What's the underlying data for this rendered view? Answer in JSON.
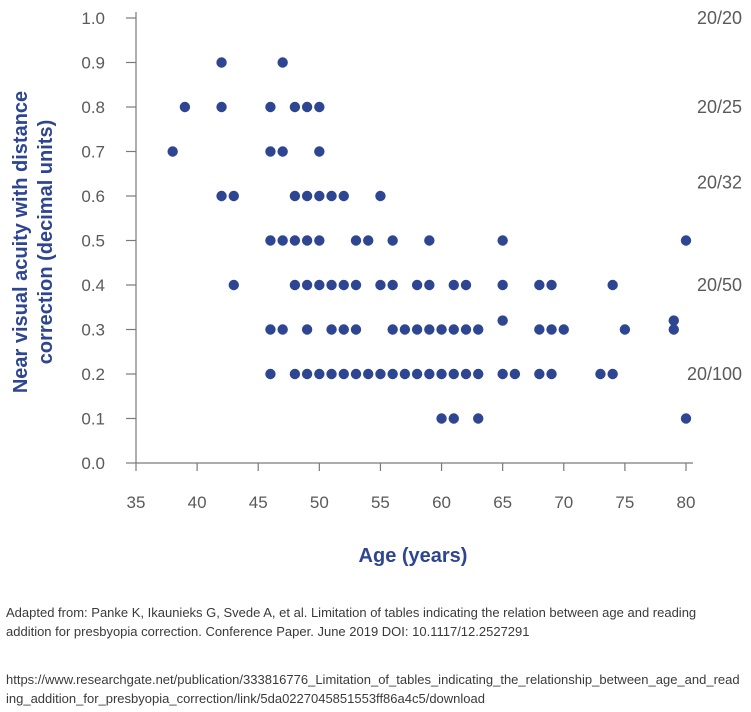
{
  "chart_data": {
    "type": "scatter",
    "title": "",
    "xlabel": "Age (years)",
    "ylabel": "Near visual acuity with distance correction (decimal units)",
    "xlim": [
      35,
      80
    ],
    "ylim": [
      0.0,
      1.0
    ],
    "xticks": [
      "35",
      "40",
      "45",
      "50",
      "55",
      "60",
      "65",
      "70",
      "75",
      "80"
    ],
    "yticks": [
      "0.0",
      "0.1",
      "0.2",
      "0.3",
      "0.4",
      "0.5",
      "0.6",
      "0.7",
      "0.8",
      "0.9",
      "1.0"
    ],
    "snellen_labels": [
      {
        "label": "20/20",
        "value": 1.0
      },
      {
        "label": "20/25",
        "value": 0.8
      },
      {
        "label": "20/32",
        "value": 0.63
      },
      {
        "label": "20/50",
        "value": 0.4
      },
      {
        "label": "20/100",
        "value": 0.2
      }
    ],
    "point_color": "#2e4592",
    "grid": false,
    "points": [
      [
        38,
        0.7
      ],
      [
        39,
        0.8
      ],
      [
        42,
        0.9
      ],
      [
        42,
        0.8
      ],
      [
        42,
        0.6
      ],
      [
        43,
        0.6
      ],
      [
        43,
        0.4
      ],
      [
        46,
        0.8
      ],
      [
        46,
        0.7
      ],
      [
        46,
        0.5
      ],
      [
        46,
        0.3
      ],
      [
        46,
        0.2
      ],
      [
        47,
        0.9
      ],
      [
        47,
        0.7
      ],
      [
        47,
        0.5
      ],
      [
        47,
        0.3
      ],
      [
        48,
        0.8
      ],
      [
        48,
        0.6
      ],
      [
        48,
        0.5
      ],
      [
        48,
        0.4
      ],
      [
        48,
        0.2
      ],
      [
        49,
        0.8
      ],
      [
        49,
        0.6
      ],
      [
        49,
        0.5
      ],
      [
        49,
        0.4
      ],
      [
        49,
        0.3
      ],
      [
        49,
        0.2
      ],
      [
        50,
        0.8
      ],
      [
        50,
        0.7
      ],
      [
        50,
        0.6
      ],
      [
        50,
        0.5
      ],
      [
        50,
        0.4
      ],
      [
        50,
        0.2
      ],
      [
        51,
        0.6
      ],
      [
        51,
        0.4
      ],
      [
        51,
        0.3
      ],
      [
        51,
        0.2
      ],
      [
        52,
        0.6
      ],
      [
        52,
        0.4
      ],
      [
        52,
        0.3
      ],
      [
        52,
        0.2
      ],
      [
        53,
        0.5
      ],
      [
        53,
        0.4
      ],
      [
        53,
        0.3
      ],
      [
        53,
        0.2
      ],
      [
        54,
        0.5
      ],
      [
        54,
        0.2
      ],
      [
        55,
        0.6
      ],
      [
        55,
        0.4
      ],
      [
        55,
        0.2
      ],
      [
        56,
        0.5
      ],
      [
        56,
        0.4
      ],
      [
        56,
        0.3
      ],
      [
        56,
        0.2
      ],
      [
        57,
        0.3
      ],
      [
        57,
        0.2
      ],
      [
        58,
        0.4
      ],
      [
        58,
        0.3
      ],
      [
        58,
        0.2
      ],
      [
        59,
        0.5
      ],
      [
        59,
        0.4
      ],
      [
        59,
        0.3
      ],
      [
        59,
        0.2
      ],
      [
        60,
        0.3
      ],
      [
        60,
        0.2
      ],
      [
        60,
        0.1
      ],
      [
        61,
        0.4
      ],
      [
        61,
        0.3
      ],
      [
        61,
        0.2
      ],
      [
        61,
        0.1
      ],
      [
        62,
        0.4
      ],
      [
        62,
        0.3
      ],
      [
        62,
        0.2
      ],
      [
        63,
        0.3
      ],
      [
        63,
        0.2
      ],
      [
        63,
        0.1
      ],
      [
        65,
        0.5
      ],
      [
        65,
        0.4
      ],
      [
        65,
        0.32
      ],
      [
        65,
        0.2
      ],
      [
        66,
        0.2
      ],
      [
        68,
        0.4
      ],
      [
        68,
        0.3
      ],
      [
        68,
        0.2
      ],
      [
        69,
        0.4
      ],
      [
        69,
        0.3
      ],
      [
        69,
        0.2
      ],
      [
        70,
        0.3
      ],
      [
        73,
        0.2
      ],
      [
        74,
        0.4
      ],
      [
        74,
        0.2
      ],
      [
        75,
        0.3
      ],
      [
        79,
        0.32
      ],
      [
        79,
        0.3
      ],
      [
        80,
        0.5
      ],
      [
        80,
        0.1
      ]
    ]
  },
  "caption": {
    "citation": "Adapted from: Panke K, Ikaunieks G, Svede A, et al. Limitation of tables indicating the relation between age and reading addition for presbyopia correction. Conference Paper. June 2019 DOI: 10.1117/12.2527291",
    "url": "https://www.researchgate.net/publication/333816776_Limitation_of_tables_indicating_the_relationship_between_age_and_reading_addition_for_presbyopia_correction/link/5da0227045851553ff86a4c5/download"
  }
}
